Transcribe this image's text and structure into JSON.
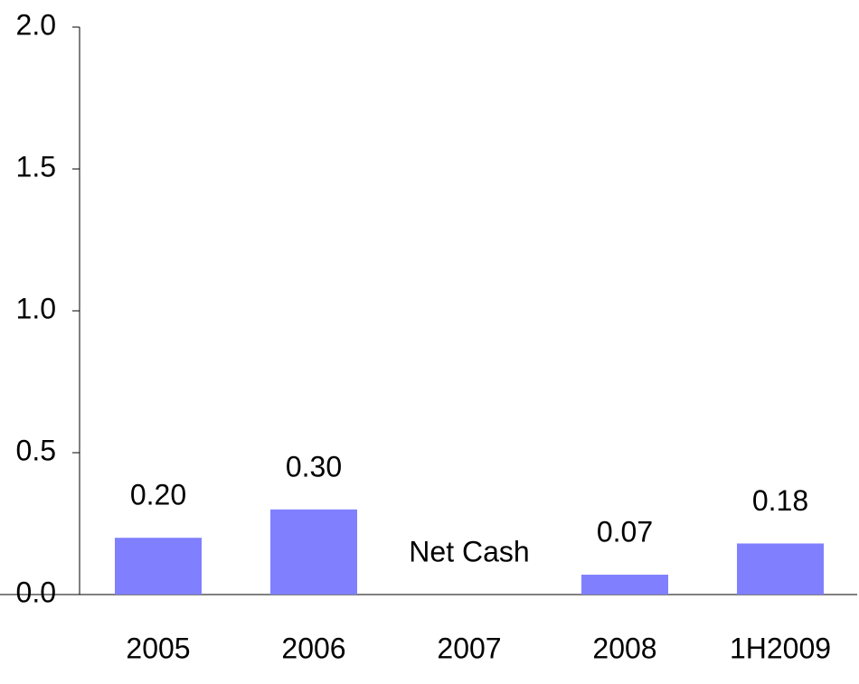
{
  "chart_data": {
    "type": "bar",
    "categories": [
      "2005",
      "2006",
      "2007",
      "2008",
      "1H2009"
    ],
    "values": [
      0.2,
      0.3,
      null,
      0.07,
      0.18
    ],
    "value_labels": [
      "0.20",
      "0.30",
      "Net Cash",
      "0.07",
      "0.18"
    ],
    "color": "#8080ff",
    "ylim": [
      0,
      2
    ],
    "yticks": [
      {
        "value": 0,
        "label": "0.0"
      },
      0.5,
      {
        "value": 1,
        "label": "1.0"
      },
      1.5,
      {
        "value": 2,
        "label": "2.0"
      }
    ],
    "grid": false
  }
}
